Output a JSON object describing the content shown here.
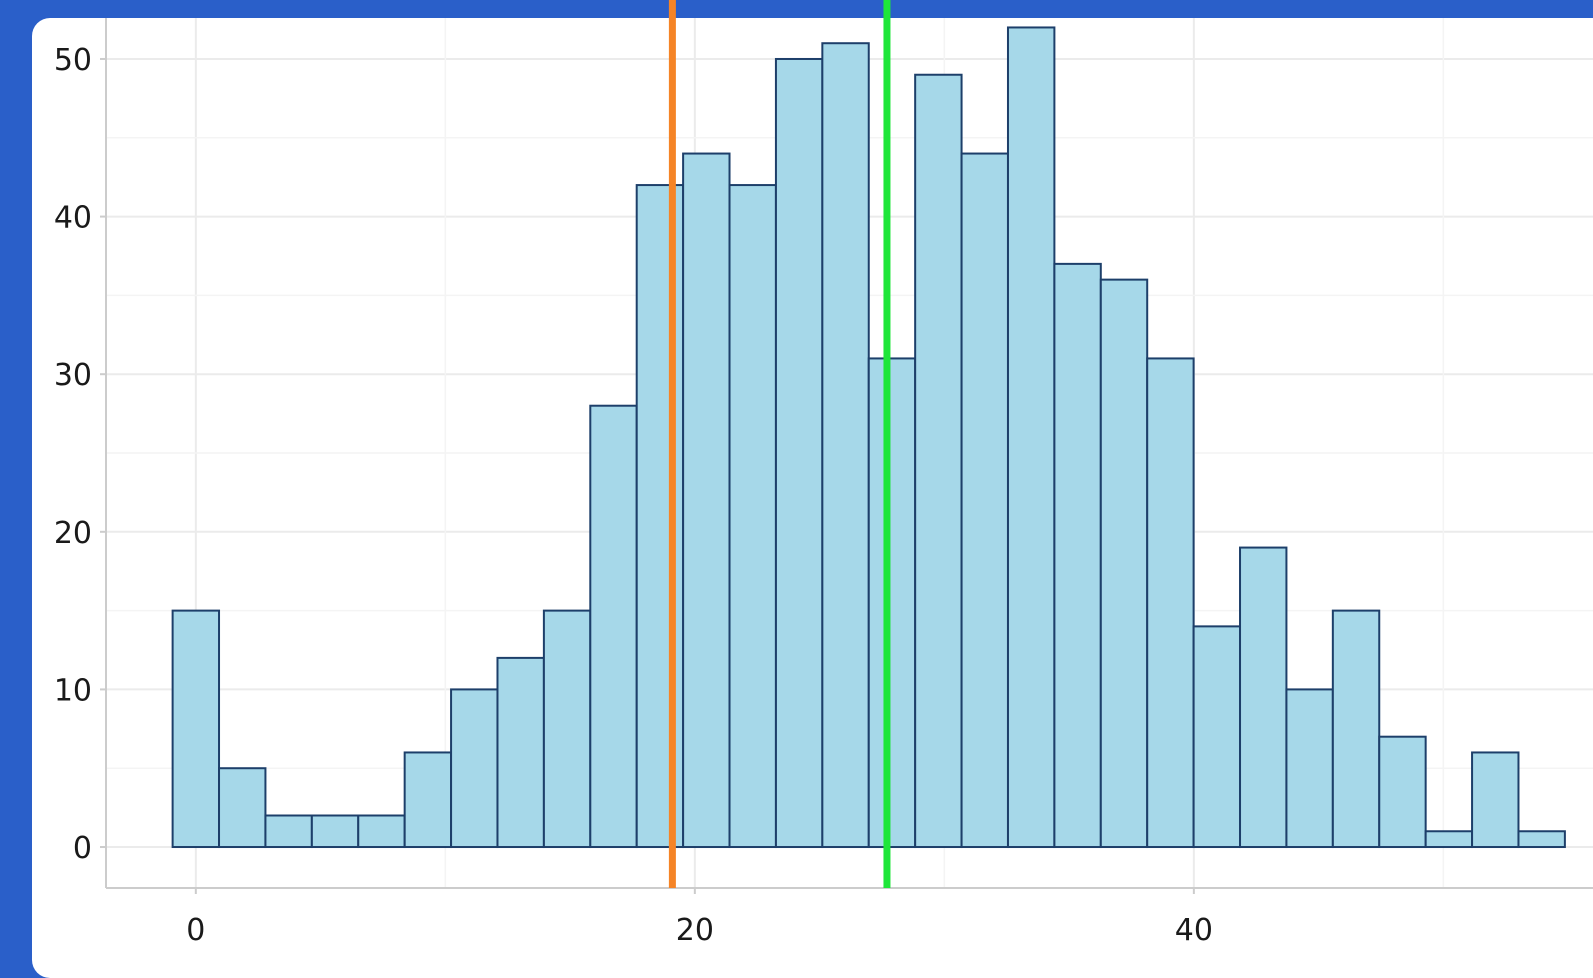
{
  "chart_data": {
    "type": "bar",
    "subtype": "histogram",
    "title": "",
    "xlabel": "",
    "ylabel": "",
    "bin_width": 1.86,
    "bin_start": -0.93,
    "values": [
      15,
      5,
      2,
      2,
      2,
      6,
      10,
      12,
      15,
      28,
      42,
      44,
      42,
      50,
      51,
      31,
      49,
      44,
      52,
      37,
      36,
      31,
      14,
      19,
      10,
      15,
      7,
      1,
      6,
      1
    ],
    "xlim": [
      -3.6,
      57.6
    ],
    "ylim": [
      -2.6,
      52.6
    ],
    "x_ticks": [
      "0",
      "20",
      "40"
    ],
    "x_tick_values": [
      0,
      20,
      40
    ],
    "y_ticks": [
      "0",
      "10",
      "20",
      "30",
      "40",
      "50"
    ],
    "y_tick_values": [
      0,
      10,
      20,
      30,
      40,
      50
    ],
    "grid": true,
    "vlines": [
      {
        "x": 19.1,
        "color": "#f58426"
      },
      {
        "x": 27.7,
        "color": "#1ee639"
      }
    ],
    "colors": {
      "bar_fill": "#a6d8e9",
      "bar_stroke": "#1d3f6a",
      "grid": "#ebebeb",
      "axis": "#cccccc",
      "frame": "#2a5fc9"
    }
  }
}
